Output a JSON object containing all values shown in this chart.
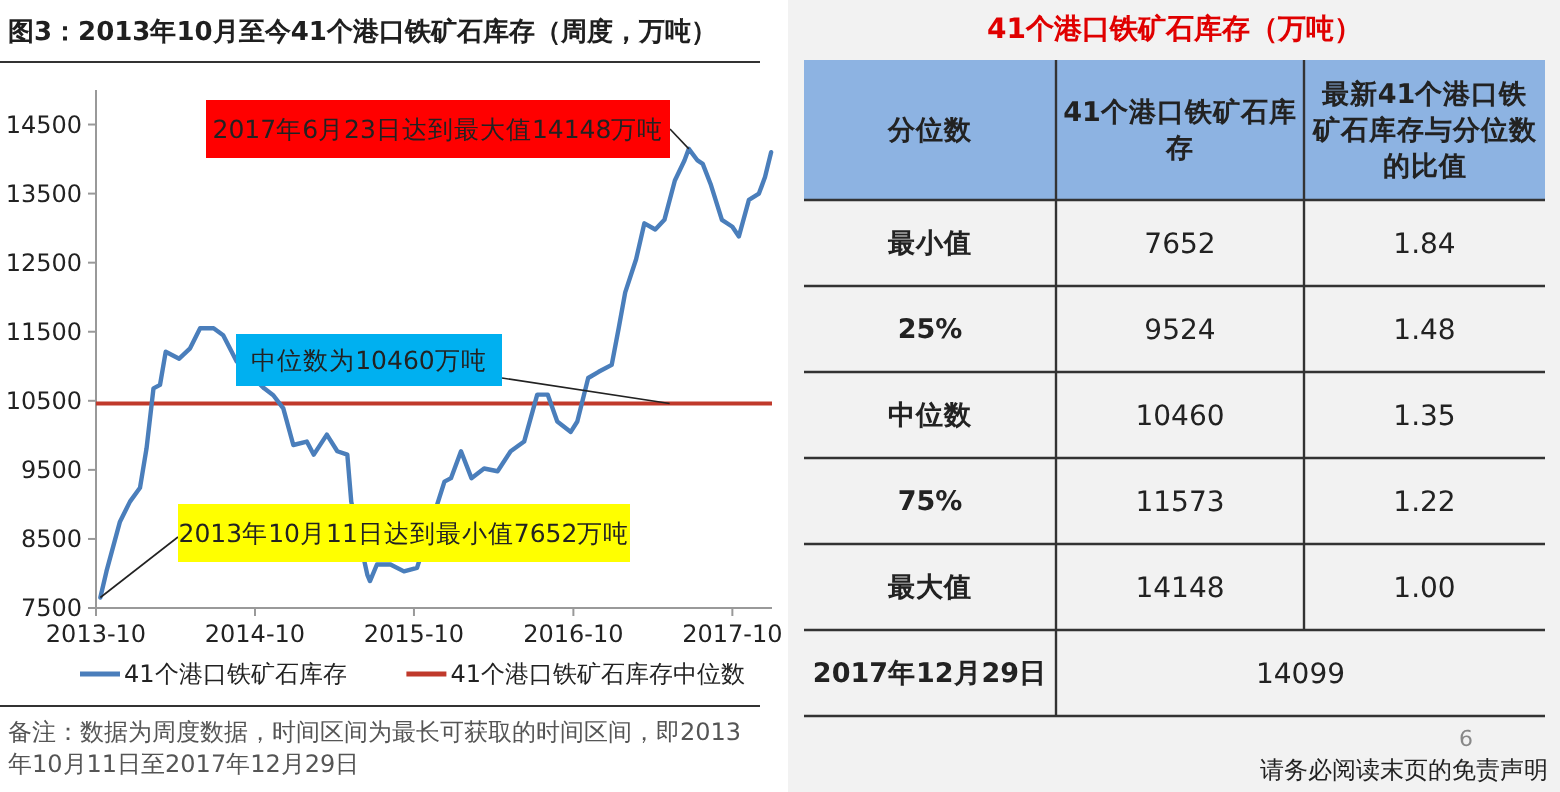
{
  "chart_data": [
    {
      "type": "line",
      "title": "图3：2013年10月至今41个港口铁矿石库存（周度，万吨）",
      "x": [
        "2013-10-11",
        "2013-10-25",
        "2013-11-25",
        "2013-12-18",
        "2014-01-10",
        "2014-01-25",
        "2014-02-10",
        "2014-02-25",
        "2014-03-10",
        "2014-04-10",
        "2014-05-05",
        "2014-05-28",
        "2014-06-28",
        "2014-07-20",
        "2014-08-20",
        "2014-09-20",
        "2014-10-22",
        "2014-11-12",
        "2014-12-05",
        "2014-12-28",
        "2015-01-28",
        "2015-02-13",
        "2015-03-15",
        "2015-04-08",
        "2015-05-01",
        "2015-05-10",
        "2015-05-22",
        "2015-06-16",
        "2015-06-22",
        "2015-07-08",
        "2015-08-08",
        "2015-09-08",
        "2015-10-08",
        "2015-12-10",
        "2015-12-25",
        "2016-01-17",
        "2016-02-10",
        "2016-03-10",
        "2016-04-10",
        "2016-05-10",
        "2016-06-10",
        "2016-07-10",
        "2016-08-03",
        "2016-08-25",
        "2016-09-25",
        "2016-10-10",
        "2016-11-04",
        "2016-11-28",
        "2016-12-28",
        "2017-01-13",
        "2017-01-28",
        "2017-02-22",
        "2017-03-13",
        "2017-04-07",
        "2017-04-28",
        "2017-05-22",
        "2017-06-13",
        "2017-06-23",
        "2017-07-13",
        "2017-07-25",
        "2017-08-12",
        "2017-09-07",
        "2017-10-01",
        "2017-10-16",
        "2017-11-08",
        "2017-12-01",
        "2017-12-15",
        "2017-12-29"
      ],
      "series": [
        {
          "name": "41个港口铁矿石库存",
          "color": "#4a7ebb",
          "values": [
            7652,
            8030,
            8750,
            9040,
            9240,
            9810,
            10680,
            10730,
            11210,
            11110,
            11260,
            11550,
            11550,
            11450,
            11070,
            null,
            10680,
            10580,
            10390,
            9860,
            9910,
            9720,
            10010,
            9770,
            9720,
            9040,
            null,
            7980,
            7890,
            8130,
            8130,
            8030,
            8080,
            9330,
            9380,
            9770,
            9380,
            9520,
            9480,
            9770,
            9910,
            10590,
            10590,
            10200,
            10050,
            10200,
            10830,
            10920,
            11020,
            11550,
            12070,
            12550,
            13070,
            12980,
            13120,
            13690,
            13980,
            14148,
            13980,
            13930,
            13640,
            13120,
            13020,
            12880,
            13410,
            13500,
            13740,
            14099
          ]
        }
      ],
      "ref_lines": [
        {
          "axis": "y",
          "value": 10460,
          "label": "41个港口铁矿石库存中位数",
          "color": "#c0392b"
        }
      ],
      "xlim": [
        "2013-10-01",
        "2017-12-31"
      ],
      "xticks": [
        "2013-10",
        "2014-10",
        "2015-10",
        "2016-10",
        "2017-10"
      ],
      "ylim": [
        7500,
        15000
      ],
      "yticks": [
        7500,
        8500,
        9500,
        10500,
        11500,
        12500,
        13500,
        14500
      ],
      "grid": false,
      "legend": "bottom",
      "line_style": "solid",
      "marker": "none",
      "annotations": [
        {
          "text": "2017年6月23日达到最大值14148万吨",
          "x": "2017-06-23",
          "y": 14148
        },
        {
          "text": "中位数为10460万吨",
          "x": "2017-05-10",
          "y": 10460
        },
        {
          "text": "2013年10月11日达到最小值7652万吨",
          "x": "2013-10-11",
          "y": 7652
        },
        "备注：数据为周度数据，时间区间为最长可获取的时间区间，即2013年10月11日至2017年12月29日"
      ]
    },
    {
      "type": "other",
      "title": "41个港口铁矿石库存（万吨）",
      "categories": [
        "分位数",
        "41个港口铁矿石库存",
        "最新41个港口铁矿石库存与分位数的比值"
      ],
      "cells": [
        [
          "最小值",
          "7652",
          "1.84"
        ],
        [
          "25%",
          "9524",
          "1.48"
        ],
        [
          "中位数",
          "10460",
          "1.35"
        ],
        [
          "75%",
          "11573",
          "1.22"
        ],
        [
          "最大值",
          "14148",
          "1.00"
        ],
        [
          "2017年12月29日",
          "14099"
        ]
      ],
      "annotations": [
        "6",
        "请务必阅读末页的免责声明"
      ]
    }
  ]
}
